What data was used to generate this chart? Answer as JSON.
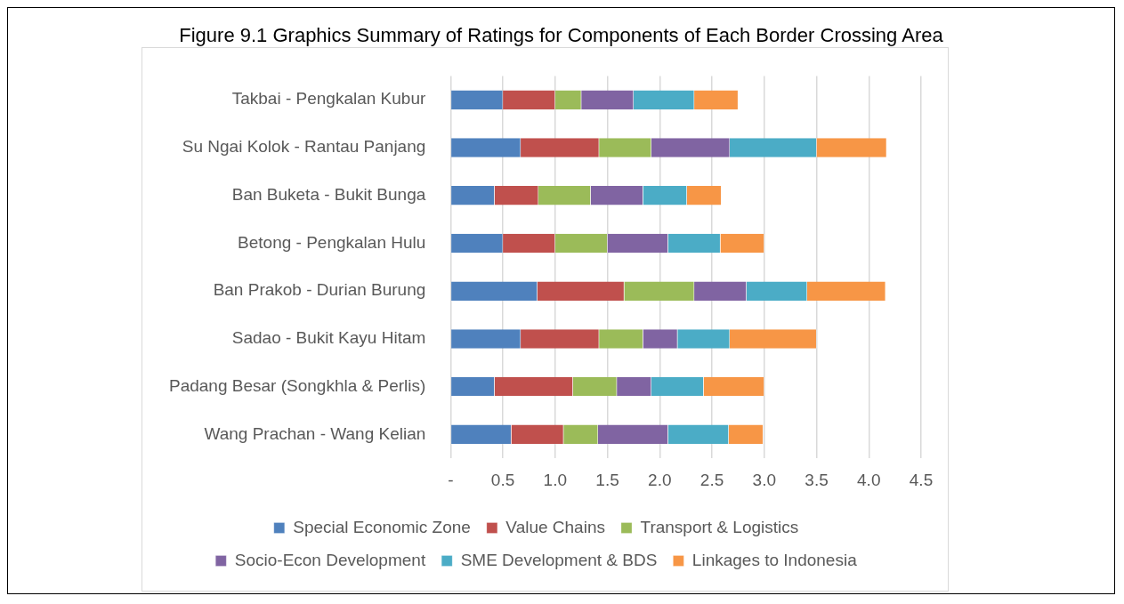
{
  "chart_data": {
    "type": "bar",
    "orientation": "horizontal",
    "stacked": true,
    "title": "Figure 9.1 Graphics Summary of Ratings for Components of Each Border Crossing Area",
    "categories": [
      "Takbai - Pengkalan Kubur",
      "Su Ngai Kolok - Rantau Panjang",
      "Ban Buketa - Bukit Bunga",
      "Betong - Pengkalan Hulu",
      "Ban Prakob - Durian Burung",
      "Sadao - Bukit Kayu Hitam",
      "Padang Besar (Songkhla & Perlis)",
      "Wang Prachan - Wang Kelian"
    ],
    "series": [
      {
        "name": "Special Economic Zone",
        "color": "#4f81bd",
        "values": [
          0.5,
          0.67,
          0.42,
          0.5,
          0.83,
          0.67,
          0.42,
          0.58
        ]
      },
      {
        "name": "Value Chains",
        "color": "#c0504d",
        "values": [
          0.5,
          0.75,
          0.42,
          0.5,
          0.83,
          0.75,
          0.75,
          0.5
        ]
      },
      {
        "name": "Transport & Logistics",
        "color": "#9bbb59",
        "values": [
          0.25,
          0.5,
          0.5,
          0.5,
          0.67,
          0.42,
          0.42,
          0.33
        ]
      },
      {
        "name": "Socio-Econ Development",
        "color": "#8064a2",
        "values": [
          0.5,
          0.75,
          0.5,
          0.58,
          0.5,
          0.33,
          0.33,
          0.67
        ]
      },
      {
        "name": "SME Development & BDS",
        "color": "#4bacc6",
        "values": [
          0.58,
          0.83,
          0.42,
          0.5,
          0.58,
          0.5,
          0.5,
          0.58
        ]
      },
      {
        "name": "Linkages to Indonesia",
        "color": "#f79646",
        "values": [
          0.42,
          0.67,
          0.33,
          0.42,
          0.75,
          0.83,
          0.58,
          0.33
        ]
      }
    ],
    "xlim": [
      0,
      4.5
    ],
    "xticks": [
      {
        "value": 0,
        "label": "-"
      },
      0.5,
      {
        "value": 1,
        "label": "1.0"
      },
      1.5,
      {
        "value": 2,
        "label": "2.0"
      },
      2.5,
      {
        "value": 3,
        "label": "3.0"
      },
      3.5,
      {
        "value": 4,
        "label": "4.0"
      },
      4.5
    ],
    "grid": "x",
    "legend": "bottom"
  }
}
